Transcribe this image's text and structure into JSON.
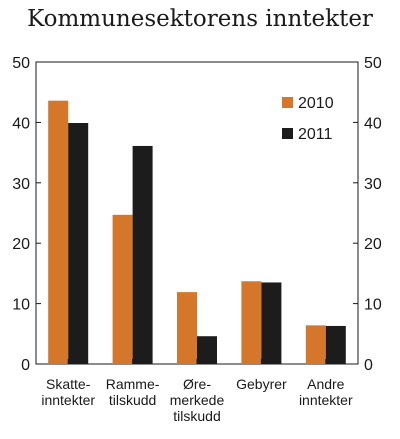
{
  "chart_data": {
    "type": "bar",
    "title": "Kommunesektorens inntekter",
    "categories": [
      [
        "Skatte-",
        "inntekter"
      ],
      [
        "Ramme-",
        "tilskudd"
      ],
      [
        "Øre-",
        "merkede",
        "tilskudd"
      ],
      [
        "Gebyrer"
      ],
      [
        "Andre",
        "inntekter"
      ]
    ],
    "series": [
      {
        "name": "2010",
        "color": "#d4772b",
        "values": [
          43.6,
          24.7,
          11.9,
          13.7,
          6.4
        ]
      },
      {
        "name": "2011",
        "color": "#1c1c1c",
        "values": [
          39.9,
          36.1,
          4.6,
          13.5,
          6.3
        ]
      }
    ],
    "ylim": [
      0,
      50
    ],
    "yticks": [
      0,
      10,
      20,
      30,
      40,
      50
    ],
    "grid": false,
    "legend_position": "top-right",
    "secondary_y_axis": true
  }
}
